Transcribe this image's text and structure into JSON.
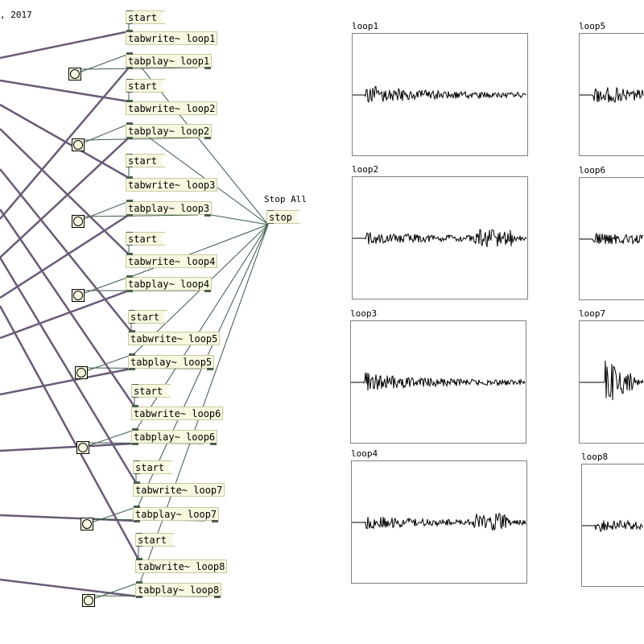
{
  "comment_fragment": ", 2017",
  "stop_all": {
    "label": "Stop All",
    "message": "stop"
  },
  "loops": [
    {
      "start": "start",
      "tabwrite": "tabwrite~ loop1",
      "tabplay": "tabplay~ loop1",
      "array": "loop1"
    },
    {
      "start": "start",
      "tabwrite": "tabwrite~ loop2",
      "tabplay": "tabplay~ loop2",
      "array": "loop2"
    },
    {
      "start": "start",
      "tabwrite": "tabwrite~ loop3",
      "tabplay": "tabplay~ loop3",
      "array": "loop3"
    },
    {
      "start": "start",
      "tabwrite": "tabwrite~ loop4",
      "tabplay": "tabplay~ loop4",
      "array": "loop4"
    },
    {
      "start": "start",
      "tabwrite": "tabwrite~ loop5",
      "tabplay": "tabplay~ loop5",
      "array": "loop5"
    },
    {
      "start": "start",
      "tabwrite": "tabwrite~ loop6",
      "tabplay": "tabplay~ loop6",
      "array": "loop6"
    },
    {
      "start": "start",
      "tabwrite": "tabwrite~ loop7",
      "tabplay": "tabplay~ loop7",
      "array": "loop7"
    },
    {
      "start": "start",
      "tabwrite": "tabwrite~ loop8",
      "tabplay": "tabplay~ loop8",
      "array": "loop8"
    }
  ],
  "colors": {
    "object_bg": "#f8f8e0",
    "signal_cord": "#6a5a78",
    "control_cord": "#3a5a48"
  }
}
